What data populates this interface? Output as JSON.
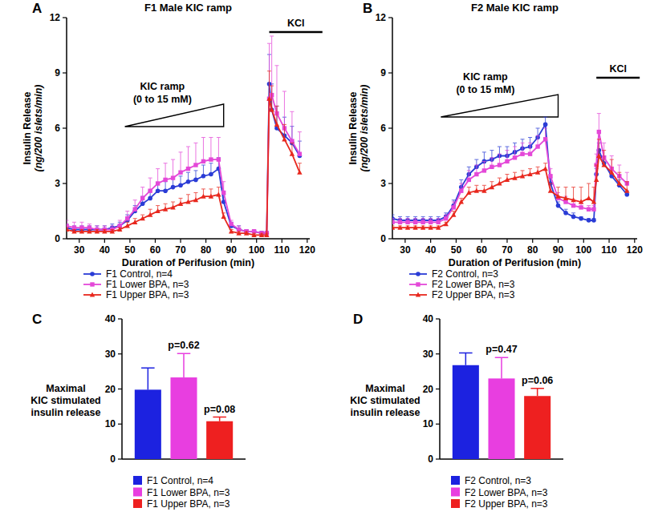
{
  "chart_data": [
    {
      "type": "line",
      "panel_label": "A",
      "title": "F1 Male KIC ramp",
      "x_label": "Duration of Perifusion (min)",
      "y_label": [
        "Insulin Release",
        "(ng/200 islets/min)"
      ],
      "x": [
        25,
        28,
        31,
        34,
        37,
        40,
        43,
        46,
        49,
        52,
        55,
        58,
        61,
        64,
        67,
        70,
        73,
        76,
        79,
        82,
        85,
        87,
        90,
        93,
        96,
        99,
        102,
        104,
        105,
        106,
        108,
        111,
        114,
        117
      ],
      "xlim": [
        25,
        121
      ],
      "xticks": [
        30,
        40,
        50,
        60,
        70,
        80,
        90,
        100,
        110,
        120
      ],
      "ylim": [
        0,
        12
      ],
      "yticks": [
        0,
        3,
        6,
        9,
        12
      ],
      "legend": "bottom",
      "annotations": [
        {
          "text": [
            "KIC ramp",
            "(0 to 15 mM)"
          ],
          "x": [
            48,
            87
          ]
        },
        {
          "text": "KCl",
          "x": [
            105,
            126
          ]
        }
      ],
      "series": [
        {
          "name": "F1 Control, n=4",
          "color": "#2a3cd6",
          "marker": "circle",
          "values": [
            0.6,
            0.5,
            0.5,
            0.5,
            0.5,
            0.5,
            0.6,
            0.7,
            1.0,
            1.5,
            1.9,
            2.2,
            2.6,
            2.6,
            2.8,
            2.9,
            3.1,
            3.2,
            3.4,
            3.5,
            3.8,
            2.0,
            0.7,
            0.5,
            0.4,
            0.4,
            0.3,
            0.3,
            8.4,
            7.0,
            6.0,
            5.6,
            5.2,
            4.5
          ],
          "errors": [
            0.2,
            0.2,
            0.2,
            0.2,
            0.2,
            0.2,
            0.2,
            0.2,
            0.3,
            0.3,
            0.4,
            0.4,
            0.4,
            0.5,
            0.5,
            0.5,
            0.5,
            0.5,
            0.6,
            0.6,
            0.6,
            0.4,
            0.2,
            0.2,
            0.1,
            0.1,
            0.1,
            0.1,
            1.6,
            1.4,
            1.2,
            1.0,
            0.9,
            0.8
          ]
        },
        {
          "name": "F1 Lower BPA, n=3",
          "color": "#e448d8",
          "marker": "square",
          "values": [
            0.7,
            0.6,
            0.6,
            0.6,
            0.5,
            0.5,
            0.5,
            0.7,
            1.1,
            1.6,
            2.2,
            2.6,
            3.0,
            3.2,
            3.3,
            3.6,
            3.8,
            4.0,
            4.2,
            4.3,
            4.3,
            2.5,
            0.8,
            0.5,
            0.4,
            0.4,
            0.3,
            0.3,
            7.6,
            7.8,
            6.8,
            6.0,
            5.3,
            4.6
          ],
          "errors": [
            0.3,
            0.3,
            0.3,
            0.2,
            0.2,
            0.2,
            0.2,
            0.3,
            0.4,
            0.5,
            0.6,
            0.7,
            0.8,
            0.9,
            1.0,
            1.1,
            1.2,
            1.2,
            1.3,
            1.2,
            1.2,
            0.6,
            0.2,
            0.2,
            0.1,
            0.1,
            0.1,
            0.1,
            3.0,
            3.2,
            2.6,
            2.0,
            1.6,
            1.2
          ]
        },
        {
          "name": "F1 Upper BPA, n=3",
          "color": "#e8281e",
          "marker": "triangle",
          "values": [
            0.5,
            0.4,
            0.4,
            0.4,
            0.4,
            0.4,
            0.4,
            0.5,
            0.7,
            0.9,
            1.1,
            1.3,
            1.5,
            1.6,
            1.7,
            1.9,
            2.0,
            2.1,
            2.3,
            2.3,
            2.4,
            1.2,
            0.4,
            0.3,
            0.3,
            0.2,
            0.2,
            0.2,
            7.6,
            7.0,
            6.2,
            5.4,
            4.6,
            3.6
          ],
          "errors": [
            0.1,
            0.1,
            0.1,
            0.1,
            0.1,
            0.1,
            0.1,
            0.1,
            0.2,
            0.2,
            0.2,
            0.3,
            0.3,
            0.3,
            0.3,
            0.3,
            0.4,
            0.4,
            0.4,
            0.4,
            0.4,
            0.2,
            0.1,
            0.1,
            0.1,
            0.1,
            0.1,
            0.1,
            1.5,
            1.3,
            1.0,
            0.8,
            0.6,
            0.5
          ]
        }
      ]
    },
    {
      "type": "line",
      "panel_label": "B",
      "title": "F2 Male KIC ramp",
      "x_label": "Duration of Perifusion (min)",
      "y_label": [
        "Insulin Release",
        "(ng/200 islets/min)"
      ],
      "x": [
        25,
        28,
        31,
        34,
        37,
        40,
        43,
        46,
        49,
        52,
        55,
        58,
        61,
        64,
        67,
        70,
        73,
        76,
        79,
        82,
        85,
        87,
        90,
        93,
        96,
        99,
        102,
        104,
        105,
        106,
        108,
        111,
        114,
        117
      ],
      "xlim": [
        25,
        121
      ],
      "xticks": [
        30,
        40,
        50,
        60,
        70,
        80,
        90,
        100,
        110,
        120
      ],
      "ylim": [
        0,
        12
      ],
      "yticks": [
        0,
        3,
        6,
        9,
        12
      ],
      "legend": "bottom",
      "annotations": [
        {
          "text": [
            "KIC ramp",
            "(0 to 15 mM)"
          ],
          "x": [
            44,
            90
          ]
        },
        {
          "text": "KCl",
          "x": [
            105,
            122
          ]
        }
      ],
      "series": [
        {
          "name": "F2 Control, n=3",
          "color": "#2a3cd6",
          "marker": "circle",
          "values": [
            1.1,
            1.0,
            1.0,
            1.0,
            1.0,
            1.0,
            1.0,
            1.2,
            1.8,
            2.8,
            3.5,
            3.9,
            4.2,
            4.3,
            4.5,
            4.5,
            4.7,
            4.9,
            5.0,
            5.5,
            6.2,
            3.0,
            1.8,
            1.4,
            1.2,
            1.1,
            1.0,
            1.0,
            3.5,
            4.8,
            4.1,
            3.4,
            2.9,
            2.4
          ],
          "errors": [
            0.2,
            0.2,
            0.2,
            0.2,
            0.2,
            0.2,
            0.2,
            0.2,
            0.3,
            0.4,
            0.4,
            0.4,
            0.5,
            0.5,
            0.5,
            0.5,
            0.5,
            0.5,
            0.5,
            0.5,
            0.4,
            0.3,
            0.2,
            0.2,
            0.2,
            0.1,
            0.1,
            0.1,
            0.3,
            0.4,
            0.4,
            0.3,
            0.3,
            0.2
          ]
        },
        {
          "name": "F2 Lower BPA, n=3",
          "color": "#e448d8",
          "marker": "square",
          "values": [
            0.9,
            0.9,
            0.9,
            0.9,
            0.9,
            0.9,
            0.9,
            1.1,
            1.7,
            2.6,
            3.2,
            3.5,
            3.7,
            3.9,
            4.0,
            4.2,
            4.4,
            4.6,
            4.6,
            5.0,
            5.4,
            3.4,
            2.2,
            2.0,
            1.8,
            1.7,
            1.6,
            1.6,
            4.0,
            5.8,
            4.4,
            3.8,
            3.4,
            3.0
          ],
          "errors": [
            0.2,
            0.2,
            0.2,
            0.2,
            0.2,
            0.2,
            0.2,
            0.2,
            0.3,
            0.4,
            0.5,
            0.5,
            0.5,
            0.5,
            0.6,
            0.6,
            0.6,
            0.6,
            0.6,
            0.6,
            0.6,
            0.4,
            0.3,
            0.3,
            0.3,
            0.2,
            0.2,
            0.2,
            0.6,
            1.0,
            0.8,
            0.7,
            0.6,
            0.6
          ]
        },
        {
          "name": "F2 Upper BPA, n=3",
          "color": "#e8281e",
          "marker": "triangle",
          "values": [
            0.6,
            0.6,
            0.6,
            0.6,
            0.6,
            0.6,
            0.6,
            0.8,
            1.3,
            2.0,
            2.5,
            2.6,
            2.6,
            2.8,
            3.0,
            3.2,
            3.3,
            3.4,
            3.5,
            3.6,
            3.8,
            2.6,
            2.3,
            2.2,
            2.1,
            2.0,
            2.2,
            2.0,
            3.2,
            4.5,
            4.0,
            3.6,
            3.0,
            2.6
          ],
          "errors": [
            0.1,
            0.1,
            0.1,
            0.1,
            0.1,
            0.1,
            0.1,
            0.1,
            0.2,
            0.2,
            0.3,
            0.3,
            0.3,
            0.3,
            0.3,
            0.3,
            0.3,
            0.3,
            0.3,
            0.3,
            0.3,
            0.4,
            0.5,
            0.6,
            0.7,
            0.8,
            0.8,
            0.8,
            0.8,
            0.9,
            0.8,
            0.7,
            0.6,
            0.5
          ]
        }
      ]
    },
    {
      "type": "bar",
      "panel_label": "C",
      "y_label": [
        "Maximal",
        "KIC stimulated",
        "insulin release"
      ],
      "categories": [
        null
      ],
      "ylim": [
        0,
        40
      ],
      "yticks": [
        0,
        10,
        20,
        30,
        40
      ],
      "legend": "bottom",
      "series": [
        {
          "name": "F1 Control, n=4",
          "color": "#1c22e0",
          "values": [
            19.8
          ],
          "errors": [
            6.2
          ]
        },
        {
          "name": "F1 Lower BPA, n=3",
          "color": "#e83ee0",
          "values": [
            23.3
          ],
          "errors": [
            6.8
          ],
          "p_label": "p=0.62"
        },
        {
          "name": "F1 Upper BPA, n=3",
          "color": "#ee2020",
          "values": [
            10.8
          ],
          "errors": [
            1.2
          ],
          "p_label": "p=0.08"
        }
      ]
    },
    {
      "type": "bar",
      "panel_label": "D",
      "y_label": [
        "Maximal",
        "KIC stimulated",
        "insulin release"
      ],
      "categories": [
        null
      ],
      "ylim": [
        0,
        40
      ],
      "yticks": [
        0,
        10,
        20,
        30,
        40
      ],
      "legend": "bottom",
      "series": [
        {
          "name": "F2 Control, n=3",
          "color": "#1c22e0",
          "values": [
            26.8
          ],
          "errors": [
            3.5
          ]
        },
        {
          "name": "F2 Lower BPA, n=3",
          "color": "#e83ee0",
          "values": [
            23.0
          ],
          "errors": [
            6.0
          ],
          "p_label": "p=0.47"
        },
        {
          "name": "F2 Upper BPA, n=3",
          "color": "#ee2020",
          "values": [
            18.0
          ],
          "errors": [
            2.2
          ],
          "p_label": "p=0.06"
        }
      ]
    }
  ]
}
